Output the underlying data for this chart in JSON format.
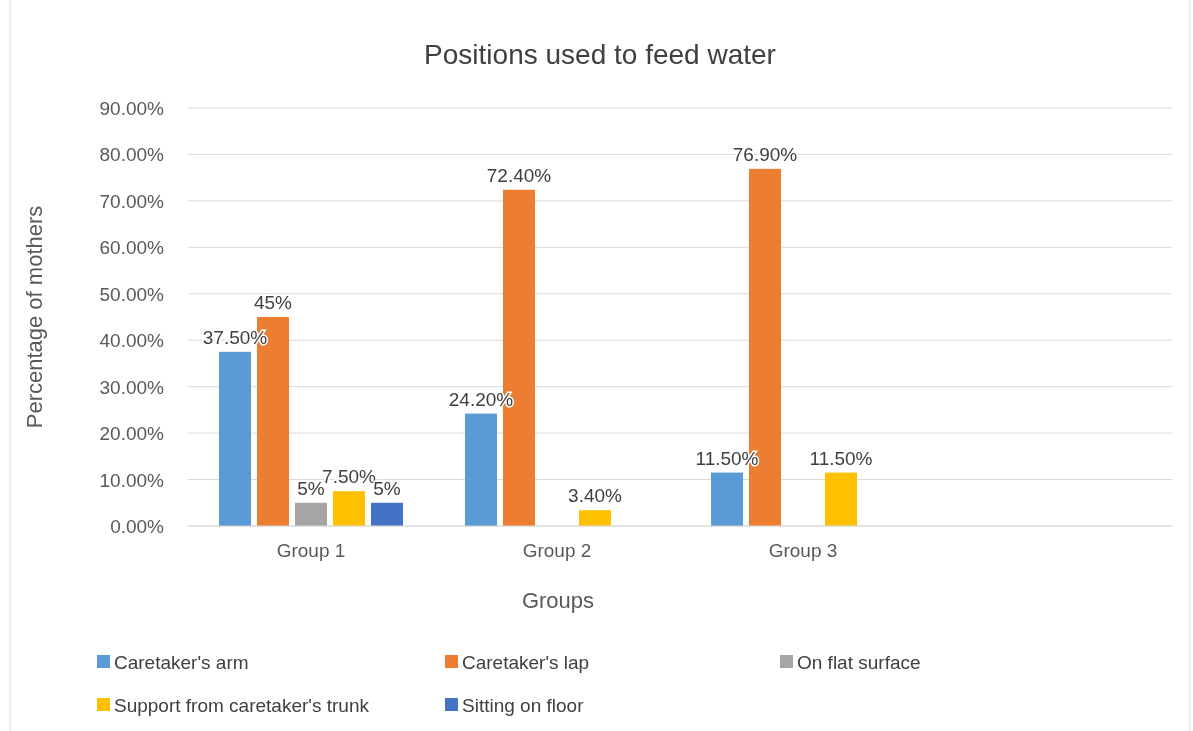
{
  "chart_data": {
    "type": "bar",
    "title": "Positions used to feed water",
    "xlabel": "Groups",
    "ylabel": "Percentage of mothers",
    "categories": [
      "Group 1",
      "Group 2",
      "Group 3",
      null
    ],
    "series": [
      {
        "name": "Caretaker's arm",
        "color": "#5b9bd5",
        "values": [
          37.5,
          24.2,
          11.5,
          null
        ],
        "value_labels": [
          "37.50%",
          "24.20%",
          "11.50%",
          null
        ]
      },
      {
        "name": "Caretaker's lap",
        "color": "#ed7d31",
        "values": [
          45,
          72.4,
          76.9,
          null
        ],
        "value_labels": [
          "45%",
          "72.40%",
          "76.90%",
          null
        ]
      },
      {
        "name": "On flat surface",
        "color": "#a5a5a5",
        "values": [
          5,
          null,
          null,
          null
        ],
        "value_labels": [
          "5%",
          null,
          null,
          null
        ]
      },
      {
        "name": "Support from caretaker's trunk",
        "color": "#ffc000",
        "values": [
          7.5,
          3.4,
          11.5,
          null
        ],
        "value_labels": [
          "7.50%",
          "3.40%",
          "11.50%",
          null
        ]
      },
      {
        "name": "Sitting on floor",
        "color": "#4472c4",
        "values": [
          5,
          null,
          null,
          null
        ],
        "value_labels": [
          "5%",
          null,
          null,
          null
        ]
      }
    ],
    "ylim": [
      0,
      90
    ],
    "yticks": [
      {
        "value": 0,
        "label": "0.00%"
      },
      {
        "value": 10,
        "label": "10.00%"
      },
      {
        "value": 20,
        "label": "20.00%"
      },
      {
        "value": 30,
        "label": "30.00%"
      },
      {
        "value": 40,
        "label": "40.00%"
      },
      {
        "value": 50,
        "label": "50.00%"
      },
      {
        "value": 60,
        "label": "60.00%"
      },
      {
        "value": 70,
        "label": "70.00%"
      },
      {
        "value": 80,
        "label": "80.00%"
      },
      {
        "value": 90,
        "label": "90.00%"
      }
    ],
    "grid": "y",
    "legend": "bottom"
  }
}
